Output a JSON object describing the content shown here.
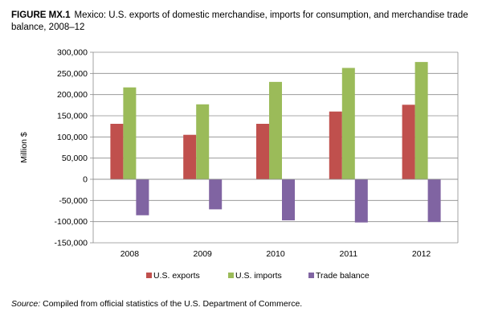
{
  "figure": {
    "label": "FIGURE MX.1",
    "title": "Mexico: U.S. exports of domestic merchandise, imports for consumption, and merchandise trade balance, 2008–12"
  },
  "source": {
    "label": "Source:",
    "text": "Compiled from official statistics of the U.S. Department of Commerce."
  },
  "chart_data": {
    "type": "bar",
    "title": "Mexico: U.S. exports of domestic merchandise, imports for consumption, and merchandise trade balance, 2008–12",
    "xlabel": "",
    "ylabel": "Million $",
    "categories": [
      "2008",
      "2009",
      "2010",
      "2011",
      "2012"
    ],
    "series": [
      {
        "name": "U.S. exports",
        "color": "#C0504D",
        "values": [
          131000,
          105000,
          131000,
          160000,
          176000
        ]
      },
      {
        "name": "U.S. imports",
        "color": "#9BBB59",
        "values": [
          217000,
          177000,
          230000,
          263000,
          277000
        ]
      },
      {
        "name": "Trade balance",
        "color": "#8064A2",
        "values": [
          -85000,
          -71000,
          -97000,
          -102000,
          -101000
        ]
      }
    ],
    "ylim": [
      -150000,
      300000
    ],
    "yticks": [
      "300,000",
      "250,000",
      "200,000",
      "150,000",
      "100,000",
      "50,000",
      "0",
      "-50,000",
      "-100,000",
      "-150,000"
    ],
    "ytick_values": [
      300000,
      250000,
      200000,
      150000,
      100000,
      50000,
      0,
      -50000,
      -100000,
      -150000
    ],
    "grid": true,
    "legend_position": "bottom"
  }
}
